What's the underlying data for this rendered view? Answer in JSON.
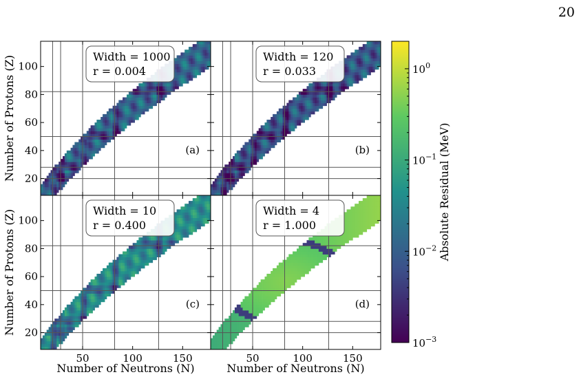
{
  "page": {
    "number": "20"
  },
  "colorbar": {
    "label": "Absolute Residual (MeV)",
    "scale": "log",
    "range": [
      0.001,
      2
    ],
    "ticks": [
      {
        "value": 1,
        "base": "10",
        "exp": "0"
      },
      {
        "value": 0.1,
        "base": "10",
        "exp": "−1"
      },
      {
        "value": 0.01,
        "base": "10",
        "exp": "−2"
      },
      {
        "value": 0.001,
        "base": "10",
        "exp": "−3"
      }
    ],
    "colormap": "viridis",
    "stops": [
      "#440154",
      "#3b528b",
      "#21918c",
      "#5ec962",
      "#fde725"
    ]
  },
  "chart_data": [
    {
      "type": "heatmap",
      "panel_label": "(a)",
      "box": [
        "Width = 1000",
        "r = 0.004"
      ],
      "xlabel": "",
      "ylabel": "Number of Protons (Z)",
      "xlim": [
        8,
        178
      ],
      "ylim": [
        8,
        118
      ],
      "xticks": [
        50,
        100,
        150
      ],
      "yticks": [
        20,
        40,
        60,
        80,
        100
      ],
      "magic_numbers": [
        20,
        28,
        50,
        82,
        126
      ],
      "residual_level": 0.012,
      "residual_variation": 0.6,
      "ring": false,
      "grid": true,
      "colorbar_scale": "log"
    },
    {
      "type": "heatmap",
      "panel_label": "(b)",
      "box": [
        "Width = 120",
        "r = 0.033"
      ],
      "xlabel": "",
      "ylabel": "",
      "xlim": [
        8,
        178
      ],
      "ylim": [
        8,
        118
      ],
      "xticks": [
        50,
        100,
        150
      ],
      "yticks": [
        20,
        40,
        60,
        80,
        100
      ],
      "magic_numbers": [
        20,
        28,
        50,
        82,
        126
      ],
      "residual_level": 0.008,
      "residual_variation": 0.6,
      "ring": false,
      "grid": true,
      "colorbar_scale": "log"
    },
    {
      "type": "heatmap",
      "panel_label": "(c)",
      "box": [
        "Width = 10",
        "r = 0.400"
      ],
      "xlabel": "Number of Neutrons (N)",
      "ylabel": "Number of Protons (Z)",
      "xlim": [
        8,
        178
      ],
      "ylim": [
        8,
        118
      ],
      "xticks": [
        50,
        100,
        150
      ],
      "yticks": [
        20,
        40,
        60,
        80,
        100
      ],
      "magic_numbers": [
        20,
        28,
        50,
        82,
        126
      ],
      "residual_level": 0.04,
      "residual_variation": 0.5,
      "ring": false,
      "grid": true,
      "colorbar_scale": "log"
    },
    {
      "type": "heatmap",
      "panel_label": "(d)",
      "box": [
        "Width = 4",
        "r = 1.000"
      ],
      "xlabel": "Number of Neutrons (N)",
      "ylabel": "",
      "xlim": [
        8,
        178
      ],
      "ylim": [
        8,
        118
      ],
      "xticks": [
        50,
        100,
        150
      ],
      "yticks": [
        20,
        40,
        60,
        80,
        100
      ],
      "magic_numbers": [
        20,
        28,
        50,
        82,
        126
      ],
      "residual_level": 0.3,
      "residual_variation": 0.4,
      "ring": true,
      "grid": true,
      "colorbar_scale": "log"
    }
  ]
}
